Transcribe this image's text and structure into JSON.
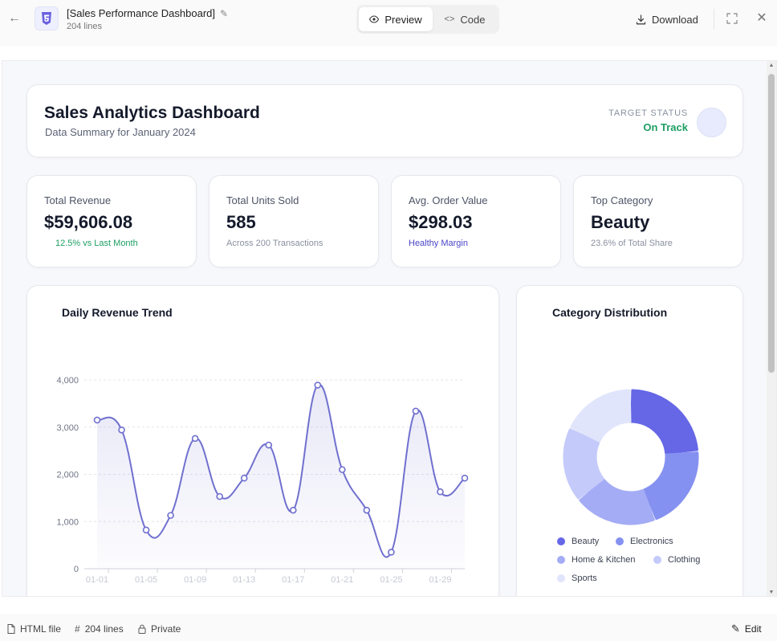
{
  "topbar": {
    "file_title": "[Sales Performance Dashboard]",
    "file_lines": "204 lines",
    "preview_label": "Preview",
    "code_label": "Code",
    "download_label": "Download"
  },
  "header": {
    "title": "Sales Analytics Dashboard",
    "subtitle": "Data Summary for January 2024",
    "target_label": "TARGET STATUS",
    "target_value": "On Track"
  },
  "kpis": [
    {
      "label": "Total Revenue",
      "value": "$59,606.08",
      "note": "12.5% vs Last Month"
    },
    {
      "label": "Total Units Sold",
      "value": "585",
      "note": "Across 200 Transactions"
    },
    {
      "label": "Avg. Order Value",
      "value": "$298.03",
      "note": "Healthy Margin"
    },
    {
      "label": "Top Category",
      "value": "Beauty",
      "note": "23.6% of Total Share"
    }
  ],
  "trend": {
    "title": "Daily Revenue Trend"
  },
  "category": {
    "title": "Category Distribution"
  },
  "colors": {
    "line": "#7070cf",
    "positive": "#1e9e63",
    "accent": "#4b45c6"
  },
  "chart_data": [
    {
      "type": "line",
      "title": "Daily Revenue Trend",
      "x": [
        "01-01",
        "01-03",
        "01-05",
        "01-07",
        "01-09",
        "01-11",
        "01-13",
        "01-15",
        "01-17",
        "01-19",
        "01-21",
        "01-23",
        "01-25",
        "01-27",
        "01-29",
        "01-31"
      ],
      "x_tick_labels": [
        "01-01",
        "01-05",
        "01-09",
        "01-13",
        "01-17",
        "01-21",
        "01-25",
        "01-29"
      ],
      "series": [
        {
          "values": [
            3150,
            2940,
            820,
            1130,
            2760,
            1530,
            1920,
            2620,
            1240,
            3890,
            2100,
            1240,
            350,
            3340,
            1630,
            1920
          ]
        }
      ],
      "ylim": [
        0,
        4000
      ],
      "y_ticks": [
        0,
        1000,
        2000,
        3000,
        4000
      ],
      "y_tick_labels": [
        "0",
        "1,000",
        "2,000",
        "3,000",
        "4,000"
      ],
      "grid": true
    },
    {
      "type": "pie",
      "title": "Category Distribution",
      "categories": [
        "Beauty",
        "Electronics",
        "Home & Kitchen",
        "Clothing",
        "Sports"
      ],
      "values": [
        23.6,
        20.5,
        20.0,
        18.0,
        17.9
      ],
      "colors": [
        "#6567e6",
        "#8591f0",
        "#a4acf5",
        "#c4cafa",
        "#e1e5fc"
      ],
      "legend": "bottom"
    }
  ],
  "footer": {
    "file_type": "HTML file",
    "lines": "204 lines",
    "privacy": "Private",
    "edit_label": "Edit"
  }
}
